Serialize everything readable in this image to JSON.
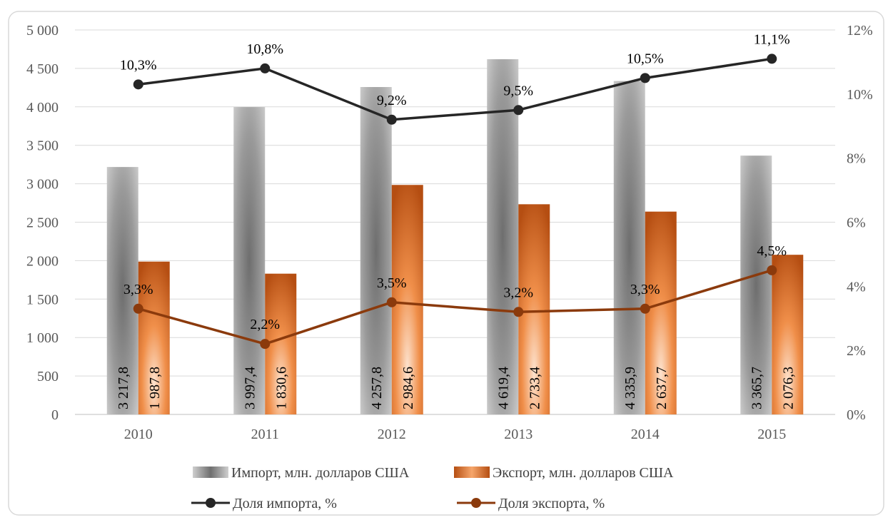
{
  "chart_data": {
    "type": "bar",
    "title": "",
    "xlabel": "",
    "ylabel": "",
    "categories": [
      "2010",
      "2011",
      "2012",
      "2013",
      "2014",
      "2015"
    ],
    "ylim": [
      0,
      5000
    ],
    "y2lim": [
      0,
      12
    ],
    "y_ticks": [
      "0",
      "500",
      "1 000",
      "1 500",
      "2 000",
      "2 500",
      "3 000",
      "3 500",
      "4 000",
      "4 500",
      "5 000"
    ],
    "y2_ticks": [
      "0%",
      "2%",
      "4%",
      "6%",
      "8%",
      "10%",
      "12%"
    ],
    "grid": true,
    "legend_position": "bottom",
    "bar_series": [
      {
        "name": "Импорт, млн. долларов США",
        "values": [
          3217.8,
          3997.4,
          4257.8,
          4619.4,
          4335.9,
          3365.7
        ],
        "labels": [
          "3 217,8",
          "3 997,4",
          "4 257,8",
          "4 619,4",
          "4 335,9",
          "3 365,7"
        ],
        "color": "#8c8c8c"
      },
      {
        "name": "Экспорт, млн. долларов США",
        "values": [
          1987.8,
          1830.6,
          2984.6,
          2733.4,
          2637.7,
          2076.3
        ],
        "labels": [
          "1 987,8",
          "1 830,6",
          "2 984,6",
          "2 733,4",
          "2 637,7",
          "2 076,3"
        ],
        "color": "#e0782a"
      }
    ],
    "line_series": [
      {
        "name": "Доля импорта, %",
        "values": [
          10.3,
          10.8,
          9.2,
          9.5,
          10.5,
          11.1
        ],
        "labels": [
          "10,3%",
          "10,8%",
          "9,2%",
          "9,5%",
          "10,5%",
          "11,1%"
        ],
        "color": "#262626"
      },
      {
        "name": "Доля экспорта, %",
        "values": [
          3.3,
          2.2,
          3.5,
          3.2,
          3.3,
          4.5
        ],
        "labels": [
          "3,3%",
          "2,2%",
          "3,5%",
          "3,2%",
          "3,3%",
          "4,5%"
        ],
        "color": "#8b3a0c"
      }
    ]
  }
}
